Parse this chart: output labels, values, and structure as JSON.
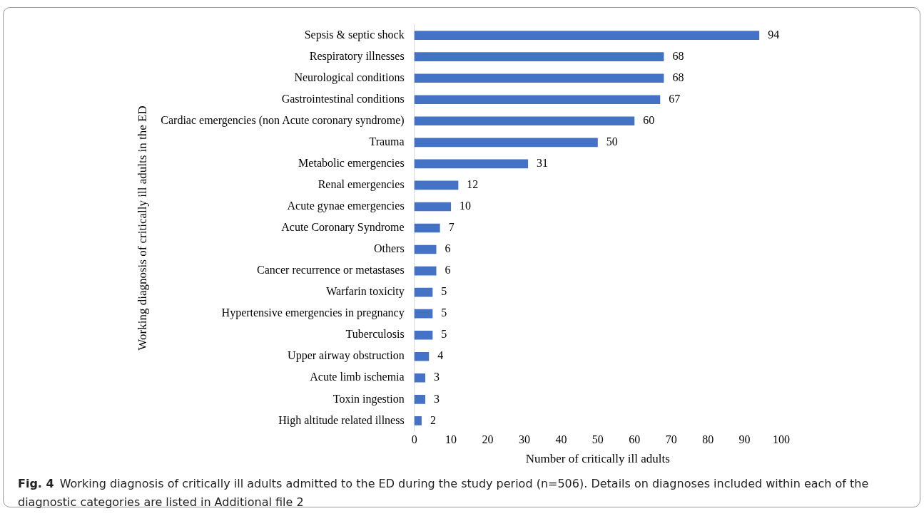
{
  "chart_data": {
    "type": "bar",
    "orientation": "horizontal",
    "categories": [
      "Sepsis & septic shock",
      "Respiratory illnesses",
      "Neurological conditions",
      "Gastrointestinal conditions",
      "Cardiac emergencies (non Acute coronary syndrome)",
      "Trauma",
      "Metabolic emergencies",
      "Renal emergencies",
      "Acute gynae emergencies",
      "Acute Coronary Syndrome",
      "Others",
      "Cancer recurrence or metastases",
      "Warfarin toxicity",
      "Hypertensive emergencies in pregnancy",
      "Tuberculosis",
      "Upper airway obstruction",
      "Acute limb ischemia",
      "Toxin ingestion",
      "High altitude related illness"
    ],
    "values": [
      94,
      68,
      68,
      67,
      60,
      50,
      31,
      12,
      10,
      7,
      6,
      6,
      5,
      5,
      5,
      4,
      3,
      3,
      2
    ],
    "color": "#4472c4",
    "xlim": [
      0,
      100
    ],
    "xticks": [
      0,
      10,
      20,
      30,
      40,
      50,
      60,
      70,
      80,
      90,
      100
    ],
    "xlabel": "Number of critically ill adults",
    "ylabel": "Working diagnosis of critically ill adults in the ED",
    "data_labels": true,
    "grid": false,
    "legend": false,
    "annotations": [
      "Fig. 4",
      "Working diagnosis of critically ill adults admitted to the ED during the study period (n=506). Details on diagnoses included within each of the diagnostic categories are listed in Additional file 2"
    ]
  }
}
